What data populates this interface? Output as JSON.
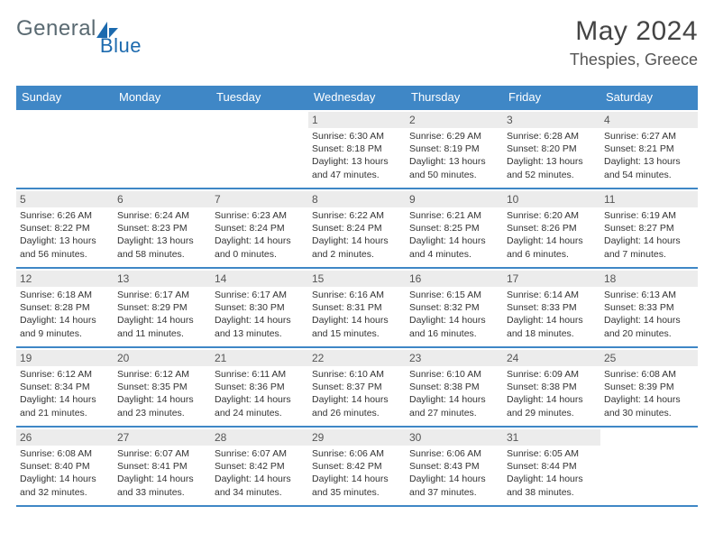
{
  "brand": {
    "name_part1": "General",
    "name_part2": "Blue"
  },
  "header": {
    "month_title": "May 2024",
    "location": "Thespies, Greece"
  },
  "colors": {
    "accent": "#3f87c6",
    "daynum_bg": "#ececec",
    "text": "#333333"
  },
  "day_names": [
    "Sunday",
    "Monday",
    "Tuesday",
    "Wednesday",
    "Thursday",
    "Friday",
    "Saturday"
  ],
  "weeks": [
    [
      null,
      null,
      null,
      {
        "n": "1",
        "sr": "6:30 AM",
        "ss": "8:18 PM",
        "dh": "13",
        "dm": "47"
      },
      {
        "n": "2",
        "sr": "6:29 AM",
        "ss": "8:19 PM",
        "dh": "13",
        "dm": "50"
      },
      {
        "n": "3",
        "sr": "6:28 AM",
        "ss": "8:20 PM",
        "dh": "13",
        "dm": "52"
      },
      {
        "n": "4",
        "sr": "6:27 AM",
        "ss": "8:21 PM",
        "dh": "13",
        "dm": "54"
      }
    ],
    [
      {
        "n": "5",
        "sr": "6:26 AM",
        "ss": "8:22 PM",
        "dh": "13",
        "dm": "56"
      },
      {
        "n": "6",
        "sr": "6:24 AM",
        "ss": "8:23 PM",
        "dh": "13",
        "dm": "58"
      },
      {
        "n": "7",
        "sr": "6:23 AM",
        "ss": "8:24 PM",
        "dh": "14",
        "dm": "0"
      },
      {
        "n": "8",
        "sr": "6:22 AM",
        "ss": "8:24 PM",
        "dh": "14",
        "dm": "2"
      },
      {
        "n": "9",
        "sr": "6:21 AM",
        "ss": "8:25 PM",
        "dh": "14",
        "dm": "4"
      },
      {
        "n": "10",
        "sr": "6:20 AM",
        "ss": "8:26 PM",
        "dh": "14",
        "dm": "6"
      },
      {
        "n": "11",
        "sr": "6:19 AM",
        "ss": "8:27 PM",
        "dh": "14",
        "dm": "7"
      }
    ],
    [
      {
        "n": "12",
        "sr": "6:18 AM",
        "ss": "8:28 PM",
        "dh": "14",
        "dm": "9"
      },
      {
        "n": "13",
        "sr": "6:17 AM",
        "ss": "8:29 PM",
        "dh": "14",
        "dm": "11"
      },
      {
        "n": "14",
        "sr": "6:17 AM",
        "ss": "8:30 PM",
        "dh": "14",
        "dm": "13"
      },
      {
        "n": "15",
        "sr": "6:16 AM",
        "ss": "8:31 PM",
        "dh": "14",
        "dm": "15"
      },
      {
        "n": "16",
        "sr": "6:15 AM",
        "ss": "8:32 PM",
        "dh": "14",
        "dm": "16"
      },
      {
        "n": "17",
        "sr": "6:14 AM",
        "ss": "8:33 PM",
        "dh": "14",
        "dm": "18"
      },
      {
        "n": "18",
        "sr": "6:13 AM",
        "ss": "8:33 PM",
        "dh": "14",
        "dm": "20"
      }
    ],
    [
      {
        "n": "19",
        "sr": "6:12 AM",
        "ss": "8:34 PM",
        "dh": "14",
        "dm": "21"
      },
      {
        "n": "20",
        "sr": "6:12 AM",
        "ss": "8:35 PM",
        "dh": "14",
        "dm": "23"
      },
      {
        "n": "21",
        "sr": "6:11 AM",
        "ss": "8:36 PM",
        "dh": "14",
        "dm": "24"
      },
      {
        "n": "22",
        "sr": "6:10 AM",
        "ss": "8:37 PM",
        "dh": "14",
        "dm": "26"
      },
      {
        "n": "23",
        "sr": "6:10 AM",
        "ss": "8:38 PM",
        "dh": "14",
        "dm": "27"
      },
      {
        "n": "24",
        "sr": "6:09 AM",
        "ss": "8:38 PM",
        "dh": "14",
        "dm": "29"
      },
      {
        "n": "25",
        "sr": "6:08 AM",
        "ss": "8:39 PM",
        "dh": "14",
        "dm": "30"
      }
    ],
    [
      {
        "n": "26",
        "sr": "6:08 AM",
        "ss": "8:40 PM",
        "dh": "14",
        "dm": "32"
      },
      {
        "n": "27",
        "sr": "6:07 AM",
        "ss": "8:41 PM",
        "dh": "14",
        "dm": "33"
      },
      {
        "n": "28",
        "sr": "6:07 AM",
        "ss": "8:42 PM",
        "dh": "14",
        "dm": "34"
      },
      {
        "n": "29",
        "sr": "6:06 AM",
        "ss": "8:42 PM",
        "dh": "14",
        "dm": "35"
      },
      {
        "n": "30",
        "sr": "6:06 AM",
        "ss": "8:43 PM",
        "dh": "14",
        "dm": "37"
      },
      {
        "n": "31",
        "sr": "6:05 AM",
        "ss": "8:44 PM",
        "dh": "14",
        "dm": "38"
      },
      null
    ]
  ],
  "labels": {
    "sunrise": "Sunrise: ",
    "sunset": "Sunset: ",
    "daylight_a": "Daylight: ",
    "daylight_b": " hours and ",
    "daylight_c": " minutes."
  }
}
